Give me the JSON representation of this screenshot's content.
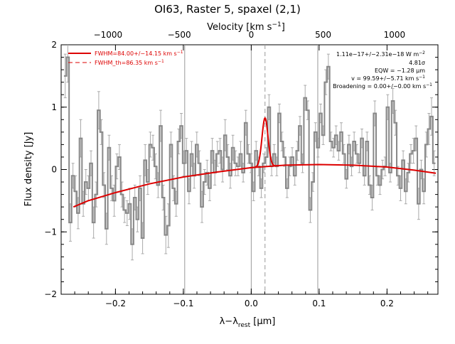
{
  "chart_data": {
    "type": "line",
    "title": "OI63, Raster 5, spaxel (2,1)",
    "xlabel_main": "λ−λ",
    "xlabel_sub": "rest",
    "xlabel_unit": " [μm]",
    "ylabel": "Flux density [Jy]",
    "top_axis_label": "Velocity [km s",
    "top_axis_label_sup": "−1",
    "top_axis_label_end": "]",
    "xlim": [
      -0.28,
      0.275
    ],
    "ylim": [
      -2,
      2
    ],
    "x_ticks": [
      -0.2,
      -0.1,
      0.0,
      0.1,
      0.2
    ],
    "x_tick_labels": [
      "−0.2",
      "−0.1",
      "0.0",
      "0.1",
      "0.2"
    ],
    "y_ticks": [
      -2,
      -1,
      0,
      1,
      2
    ],
    "y_tick_labels": [
      "−2",
      "−1",
      "0",
      "1",
      "2"
    ],
    "top_ticks_um": [
      -0.211,
      -0.106,
      0.0,
      0.106,
      0.211
    ],
    "top_tick_labels": [
      "−1000",
      "−500",
      "0",
      "500",
      "1000"
    ],
    "vlines": [
      -0.098,
      0.0,
      0.098
    ],
    "line_center": 0.0203,
    "legend": [
      {
        "label": "FWHM=84.00+/−14.15 km s",
        "sup": "−1",
        "style": "solid",
        "color": "#dd0000"
      },
      {
        "label": "FWHM_th=86.35 km s",
        "sup": "−1",
        "style": "dashed",
        "color": "#dd0000"
      }
    ],
    "annotations": [
      {
        "text": "1.11e−17+/−2.31e−18 W m",
        "sup": "−2"
      },
      {
        "text": "4.81σ",
        "sup": ""
      },
      {
        "text": "EQW = −1.28 μm",
        "sup": ""
      },
      {
        "text": "v = 99.59+/−5.71 km s",
        "sup": "−1"
      },
      {
        "text": "Broadening = 0.00+/−0.00 km s",
        "sup": "−1"
      }
    ],
    "spectrum": {
      "x_start": -0.274,
      "x_step": 0.0038,
      "values": [
        1.5,
        1.8,
        -0.85,
        -0.1,
        -0.35,
        -0.7,
        0.5,
        -0.55,
        -0.2,
        -0.3,
        0.1,
        -0.85,
        -0.4,
        0.95,
        0.6,
        -0.25,
        -0.95,
        0.35,
        -0.3,
        -0.5,
        0.05,
        0.2,
        -0.4,
        -0.65,
        -0.7,
        -0.55,
        -1.2,
        -0.45,
        -0.8,
        -0.3,
        -1.1,
        0.15,
        -0.2,
        0.4,
        0.35,
        0.05,
        -0.25,
        0.7,
        -0.45,
        -1.05,
        -0.9,
        0.4,
        -0.3,
        -0.55,
        0.45,
        0.7,
        0.1,
        0.3,
        -0.35,
        0.25,
        -0.1,
        0.4,
        0.1,
        -0.6,
        -0.2,
        -0.05,
        -0.3,
        0.3,
        -0.05,
        0.25,
        0.3,
        0.0,
        0.55,
        0.2,
        -0.1,
        0.35,
        0.1,
        0.05,
        0.25,
        -0.05,
        0.75,
        0.25,
        0.1,
        -0.35,
        0.3,
        0.05,
        -0.3,
        0.1,
        0.2,
        1.0,
        0.05,
        0.25,
        0.05,
        0.9,
        0.45,
        0.2,
        -0.3,
        0.05,
        0.2,
        -0.1,
        0.3,
        0.7,
        0.1,
        1.15,
        0.95,
        -0.65,
        -0.2,
        0.6,
        0.35,
        0.9,
        0.55,
        1.4,
        1.65,
        0.45,
        0.35,
        0.55,
        0.3,
        0.6,
        0.25,
        -0.15,
        0.4,
        0.05,
        0.45,
        0.25,
        0.1,
        0.5,
        -0.1,
        0.45,
        -0.25,
        -0.45,
        0.9,
        -0.1,
        -0.25,
        0.0,
        0.05,
        1.0,
        -0.05,
        1.1,
        0.75,
        -0.1,
        -0.3,
        0.15,
        -0.35,
        -0.05,
        0.25,
        0.3,
        0.5,
        -0.55,
        0.0,
        -0.35,
        0.4,
        0.65,
        0.85,
        0.1
      ],
      "errors": [
        0.35,
        0.4,
        0.3,
        0.2,
        0.25,
        0.25,
        0.3,
        0.2,
        0.2,
        0.2,
        0.2,
        0.25,
        0.2,
        0.3,
        0.2,
        0.2,
        0.25,
        0.2,
        0.2,
        0.25,
        0.2,
        0.2,
        0.2,
        0.2,
        0.2,
        0.25,
        0.25,
        0.2,
        0.2,
        0.2,
        0.25,
        0.25,
        0.2,
        0.2,
        0.2,
        0.2,
        0.2,
        0.25,
        0.2,
        0.3,
        0.35,
        0.2,
        0.2,
        0.2,
        0.2,
        0.2,
        0.2,
        0.2,
        0.2,
        0.2,
        0.2,
        0.2,
        0.2,
        0.25,
        0.2,
        0.2,
        0.2,
        0.2,
        0.2,
        0.2,
        0.2,
        0.2,
        0.25,
        0.2,
        0.2,
        0.2,
        0.2,
        0.15,
        0.2,
        0.15,
        0.2,
        0.15,
        0.15,
        0.15,
        0.15,
        0.15,
        0.15,
        0.15,
        0.15,
        0.2,
        0.15,
        0.15,
        0.15,
        0.15,
        0.15,
        0.15,
        0.15,
        0.15,
        0.15,
        0.15,
        0.15,
        0.15,
        0.15,
        0.2,
        0.15,
        0.2,
        0.15,
        0.15,
        0.15,
        0.15,
        0.15,
        0.2,
        0.2,
        0.15,
        0.15,
        0.15,
        0.15,
        0.15,
        0.15,
        0.15,
        0.15,
        0.15,
        0.15,
        0.15,
        0.15,
        0.15,
        0.15,
        0.15,
        0.15,
        0.2,
        0.2,
        0.15,
        0.15,
        0.15,
        0.15,
        0.2,
        0.15,
        0.2,
        0.2,
        0.15,
        0.2,
        0.15,
        0.2,
        0.15,
        0.15,
        0.2,
        0.2,
        0.25,
        0.15,
        0.2,
        0.2,
        0.25,
        0.3,
        0.2
      ]
    },
    "baseline_fit": {
      "x": [
        -0.262,
        -0.24,
        -0.2,
        -0.15,
        -0.1,
        -0.05,
        0.0,
        0.05,
        0.1,
        0.15,
        0.2,
        0.24,
        0.272
      ],
      "y": [
        -0.6,
        -0.5,
        -0.37,
        -0.23,
        -0.12,
        -0.04,
        0.03,
        0.07,
        0.08,
        0.07,
        0.04,
        -0.01,
        -0.06
      ]
    },
    "gauss_fit": {
      "amplitude": 0.78,
      "center": 0.0203,
      "sigma": 0.00445
    }
  }
}
